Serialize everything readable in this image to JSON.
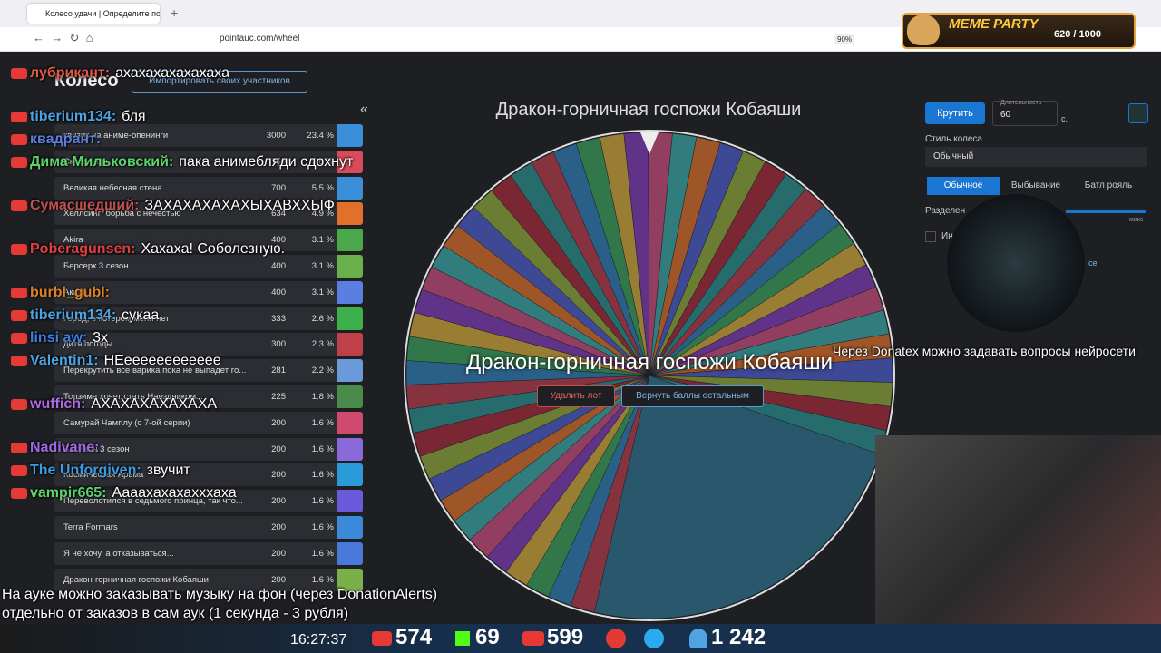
{
  "browser": {
    "tab_title": "Колесо удачи | Определите по...",
    "url": "pointauc.com/wheel",
    "zoom": "90%"
  },
  "overlay": {
    "badge_title": "MEME PARTY",
    "badge_count": "620 / 1000"
  },
  "page": {
    "title": "Колесо",
    "import_button": "Импортировать своих участников",
    "collapse": "«"
  },
  "lots": {
    "rows": [
      [
        "квизик на аниме-опенинги",
        3000,
        "23.4 %"
      ],
      [
        "Скитальцы",
        750,
        "5.8 %"
      ],
      [
        "Великая небесная стена",
        700,
        "5.5 %"
      ],
      [
        "Хеллсинг: борьба с нечестью",
        634,
        "4.9 %"
      ],
      [
        "Akira",
        400,
        "3.1 %"
      ],
      [
        "Берсерк 3 сезон",
        400,
        "3.1 %"
      ],
      [
        "Акира",
        400,
        "3.1 %"
      ],
      [
        "Город, в котором меня нет",
        333,
        "2.6 %"
      ],
      [
        "дитя погоды",
        300,
        "2.3 %"
      ],
      [
        "Перекрутить все варика пока не выпадет го...",
        281,
        "2.2 %"
      ],
      [
        "Тодзима хочет стать Наездником...",
        225,
        "1.8 %"
      ],
      [
        "Самурай Чамплу (с 7-ой серии)",
        200,
        "1.6 %"
      ],
      [
        "Бакуман 3 сезон",
        200,
        "1.6 %"
      ],
      [
        "Космическая Арьма",
        200,
        "1.6 %"
      ],
      [
        "Переволотился в седьмого принца, так что...",
        200,
        "1.6 %"
      ],
      [
        "Terra Formars",
        200,
        "1.6 %"
      ],
      [
        "Я не хочу, а отказываться...",
        200,
        "1.6 %"
      ],
      [
        "Дракон-горничная госпожи Кобаяши",
        200,
        "1.6 %"
      ]
    ]
  },
  "wheel": {
    "title": "Дракон-горничная госпожи Кобаяши",
    "winner": "Дракон-горничная госпожи Кобаяши",
    "delete_button": "Удалить лот",
    "return_button": "Вернуть баллы остальным"
  },
  "settings": {
    "spin_button": "Крутить",
    "duration_label": "Длительность",
    "duration_value": "60",
    "duration_unit": "с.",
    "style_label": "Стиль колеса",
    "style_value": "Обычный",
    "modes": [
      "Обычное",
      "Выбывание",
      "Батл рояль"
    ],
    "split_label": "Разделен",
    "max_label": "макс",
    "checkbox_label": "Ин",
    "link_text": "се"
  },
  "chat": {
    "messages": [
      {
        "user": "лубрикант:",
        "text": "ахахахахахахаха",
        "color": "#e05a4a"
      },
      {
        "user": "tiberium134:",
        "text": "бля",
        "color": "#4fa3e0"
      },
      {
        "user": "квадрант:",
        "text": "",
        "color": "#5b7fe0"
      },
      {
        "user": "Дима Мильковский:",
        "text": "пака анимебляди сдохнут",
        "color": "#5fd36b"
      },
      {
        "user": "Сумасшедший:",
        "text": "ЗАХАХАХАХАХЫХАВХХЫФ",
        "color": "#c0504d"
      },
      {
        "user": "Poberagunsen:",
        "text": "Хахаха! Соболезную.",
        "color": "#e04040"
      },
      {
        "user": "burbl_gubl:",
        "text": "",
        "color": "#d9822b"
      },
      {
        "user": "tiberium134:",
        "text": "сукаа",
        "color": "#4fa3e0"
      },
      {
        "user": "linsi aw:",
        "text": "3x",
        "color": "#3d7fe0"
      },
      {
        "user": "Valentin1:",
        "text": "НЕееееееееееее",
        "color": "#4fa3e0"
      },
      {
        "user": "wuffich:",
        "text": "АХАХАХАХАХАХА",
        "color": "#b06ae0"
      },
      {
        "user": "Nadivane:",
        "text": "",
        "color": "#9c6ae0"
      },
      {
        "user": "The Unforgiven:",
        "text": "звучит",
        "color": "#3d9be0"
      },
      {
        "user": "vampir665:",
        "text": "Аааахахахахххаха",
        "color": "#5fd36b"
      }
    ]
  },
  "captions": {
    "right": "Через Donatex можно задавать вопросы нейросети",
    "bottom_1": "На ауке можно заказывать музыку на фон (через DonationAlerts)",
    "bottom_2": "отдельно от заказов в сам аук (1 секунда - 3 рубля)"
  },
  "stream_bar": {
    "time": "16:27:37",
    "youtube": "574",
    "kick": "69",
    "vk": "599",
    "viewers": "1 242"
  }
}
